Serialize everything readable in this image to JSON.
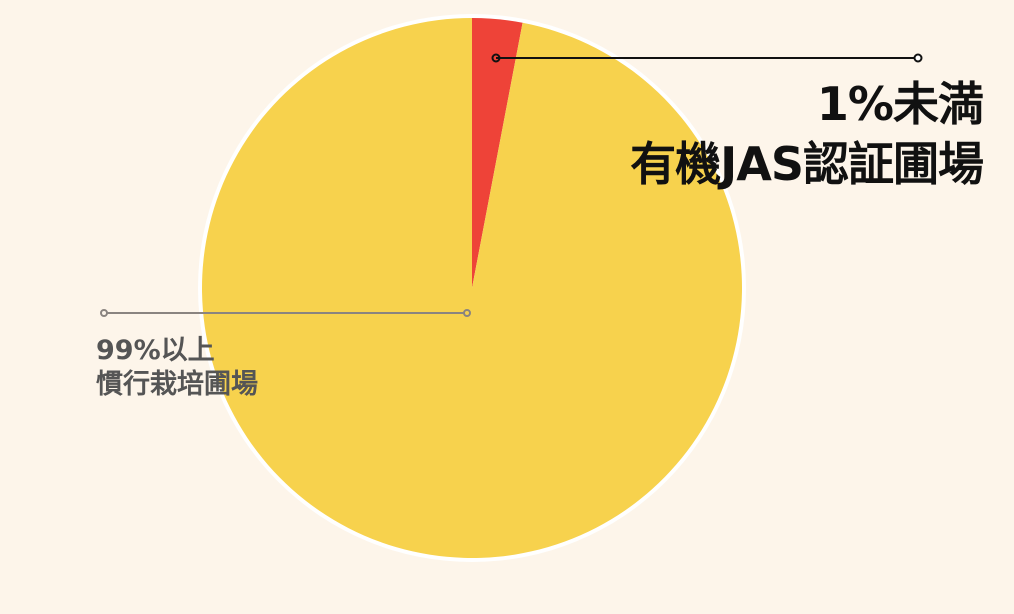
{
  "chart_data": {
    "type": "pie",
    "slices": [
      {
        "label_line1": "1%未満",
        "label_line2": "有機JAS認証圃場",
        "value": 3,
        "color": "#ee4338"
      },
      {
        "label_line1": "99%以上",
        "label_line2": "慣行栽培圃場",
        "value": 97,
        "color": "#f7d24d"
      }
    ],
    "start_angle": "12 o'clock",
    "direction": "clockwise",
    "border_color": "#ffffff",
    "background": "#fdf5ea"
  }
}
